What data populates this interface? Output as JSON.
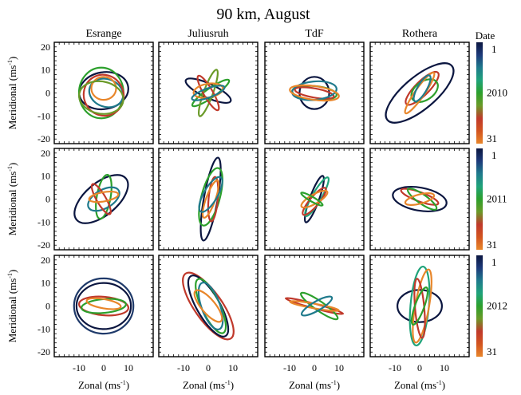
{
  "chart_data": {
    "type": "line",
    "title": "90 km, August",
    "xlabel": "Zonal (ms",
    "ylabel": "Meridional (ms",
    "unit_superscript": "-1",
    "columns": [
      "Esrange",
      "Juliusruh",
      "TdF",
      "Rothera"
    ],
    "years": [
      "2010",
      "2011",
      "2012"
    ],
    "xlim": [
      -20,
      20
    ],
    "ylim": [
      -22,
      22
    ],
    "xticks": [
      -10,
      0,
      10
    ],
    "yticks": [
      -20,
      -10,
      0,
      10,
      20
    ],
    "grid": false,
    "colorbar": {
      "title": "Date",
      "top_label": "1",
      "bottom_label": "31",
      "colors": [
        "#0b1640",
        "#1d3a7a",
        "#1f7a8c",
        "#1fa37a",
        "#2ca02c",
        "#6a9a28",
        "#c0392b",
        "#d2541f",
        "#e8862a"
      ]
    },
    "series_description": "Each panel shows hodograph ellipses (meridional vs zonal wind) for days 1-31 of August colored by date",
    "panels": [
      [
        {
          "ellipses": [
            {
              "cx": 0,
              "cy": 1,
              "a": 10,
              "b": 8,
              "angle": 10,
              "color": "#0b1640"
            },
            {
              "cx": -1,
              "cy": 0,
              "a": 9,
              "b": 11,
              "angle": 0,
              "color": "#2ca02c"
            },
            {
              "cx": 1,
              "cy": 0,
              "a": 7,
              "b": 6,
              "angle": -20,
              "color": "#1f7a8c"
            },
            {
              "cx": 0,
              "cy": -1,
              "a": 8,
              "b": 9,
              "angle": 30,
              "color": "#c0392b"
            },
            {
              "cx": 0,
              "cy": 2,
              "a": 5,
              "b": 5,
              "angle": 0,
              "color": "#e8862a"
            },
            {
              "cx": -1,
              "cy": -2,
              "a": 9,
              "b": 7,
              "angle": -10,
              "color": "#6a9a28"
            }
          ]
        },
        {
          "ellipses": [
            {
              "cx": 0,
              "cy": 1,
              "a": 10,
              "b": 3,
              "angle": -25,
              "color": "#0b1640"
            },
            {
              "cx": 1,
              "cy": 0,
              "a": 9,
              "b": 2,
              "angle": 35,
              "color": "#2ca02c"
            },
            {
              "cx": 0,
              "cy": 0,
              "a": 10,
              "b": 2,
              "angle": 70,
              "color": "#6a9a28"
            },
            {
              "cx": 0,
              "cy": 0,
              "a": 8,
              "b": 2,
              "angle": -60,
              "color": "#c0392b"
            },
            {
              "cx": 0,
              "cy": 1,
              "a": 6,
              "b": 3,
              "angle": 10,
              "color": "#e8862a"
            },
            {
              "cx": 0,
              "cy": 0,
              "a": 7,
              "b": 2,
              "angle": 20,
              "color": "#1f7a8c"
            }
          ]
        },
        {
          "ellipses": [
            {
              "cx": 0,
              "cy": 0,
              "a": 6,
              "b": 7,
              "angle": 0,
              "color": "#0b1640"
            },
            {
              "cx": 0,
              "cy": 0,
              "a": 9,
              "b": 3,
              "angle": -5,
              "color": "#2ca02c"
            },
            {
              "cx": 0,
              "cy": 0,
              "a": 8,
              "b": 2,
              "angle": -10,
              "color": "#c0392b"
            },
            {
              "cx": 0,
              "cy": 1,
              "a": 9,
              "b": 4,
              "angle": 5,
              "color": "#1f7a8c"
            },
            {
              "cx": 0,
              "cy": 0,
              "a": 10,
              "b": 3,
              "angle": -8,
              "color": "#e8862a"
            }
          ]
        },
        {
          "ellipses": [
            {
              "cx": 0,
              "cy": 0,
              "a": 17,
              "b": 7,
              "angle": 40,
              "color": "#0b1640"
            },
            {
              "cx": 1,
              "cy": 2,
              "a": 9,
              "b": 3,
              "angle": 45,
              "color": "#c0392b"
            },
            {
              "cx": 2,
              "cy": 1,
              "a": 6,
              "b": 4,
              "angle": 35,
              "color": "#2ca02c"
            },
            {
              "cx": 0,
              "cy": 0,
              "a": 10,
              "b": 2,
              "angle": 55,
              "color": "#e8862a"
            },
            {
              "cx": 1,
              "cy": 2,
              "a": 6,
              "b": 2,
              "angle": 60,
              "color": "#1f7a8c"
            }
          ]
        }
      ],
      [
        {
          "ellipses": [
            {
              "cx": -1,
              "cy": 0,
              "a": 13,
              "b": 7,
              "angle": 40,
              "color": "#0b1640"
            },
            {
              "cx": 0,
              "cy": 1,
              "a": 9,
              "b": 3,
              "angle": 80,
              "color": "#2ca02c"
            },
            {
              "cx": 0,
              "cy": 0,
              "a": 7,
              "b": 4,
              "angle": 30,
              "color": "#1f7a8c"
            },
            {
              "cx": -1,
              "cy": 0,
              "a": 7,
              "b": 2,
              "angle": -60,
              "color": "#c0392b"
            },
            {
              "cx": 0,
              "cy": 1,
              "a": 6,
              "b": 2,
              "angle": 10,
              "color": "#e8862a"
            }
          ]
        },
        {
          "ellipses": [
            {
              "cx": 1,
              "cy": 0,
              "a": 17,
              "b": 3,
              "angle": 80,
              "color": "#0b1640"
            },
            {
              "cx": 1,
              "cy": 1,
              "a": 12,
              "b": 4,
              "angle": 75,
              "color": "#2ca02c"
            },
            {
              "cx": 2,
              "cy": 0,
              "a": 9,
              "b": 2,
              "angle": 85,
              "color": "#c0392b"
            },
            {
              "cx": 1,
              "cy": 0,
              "a": 8,
              "b": 2,
              "angle": 70,
              "color": "#e8862a"
            },
            {
              "cx": 1,
              "cy": 2,
              "a": 8,
              "b": 3,
              "angle": 60,
              "color": "#1f7a8c"
            }
          ]
        },
        {
          "ellipses": [
            {
              "cx": 0,
              "cy": 0,
              "a": 10,
              "b": 2,
              "angle": 70,
              "color": "#0b1640"
            },
            {
              "cx": 1,
              "cy": 1,
              "a": 9,
              "b": 2,
              "angle": 60,
              "color": "#1fa37a"
            },
            {
              "cx": 0,
              "cy": -1,
              "a": 7,
              "b": 2,
              "angle": 50,
              "color": "#c0392b"
            },
            {
              "cx": 0,
              "cy": 0,
              "a": 6,
              "b": 2,
              "angle": 30,
              "color": "#e8862a"
            },
            {
              "cx": -1,
              "cy": 0,
              "a": 5,
              "b": 1,
              "angle": -30,
              "color": "#2ca02c"
            }
          ]
        },
        {
          "ellipses": [
            {
              "cx": 0,
              "cy": 0,
              "a": 11,
              "b": 5,
              "angle": -10,
              "color": "#0b1640"
            },
            {
              "cx": 0,
              "cy": 1,
              "a": 8,
              "b": 2,
              "angle": -20,
              "color": "#c0392b"
            },
            {
              "cx": 1,
              "cy": 0,
              "a": 7,
              "b": 2,
              "angle": -35,
              "color": "#2ca02c"
            },
            {
              "cx": 0,
              "cy": 0,
              "a": 6,
              "b": 2,
              "angle": 15,
              "color": "#e8862a"
            }
          ]
        }
      ],
      [
        {
          "ellipses": [
            {
              "cx": 0,
              "cy": 0,
              "a": 12,
              "b": 12,
              "angle": 0,
              "color": "#1f3a6a"
            },
            {
              "cx": 0,
              "cy": 0,
              "a": 11,
              "b": 10,
              "angle": 0,
              "color": "#0b1640"
            },
            {
              "cx": 0,
              "cy": 0,
              "a": 10,
              "b": 4,
              "angle": -5,
              "color": "#c0392b"
            },
            {
              "cx": 0,
              "cy": 0,
              "a": 9,
              "b": 3,
              "angle": 5,
              "color": "#2ca02c"
            },
            {
              "cx": 0,
              "cy": 1,
              "a": 7,
              "b": 2,
              "angle": -10,
              "color": "#e8862a"
            }
          ]
        },
        {
          "ellipses": [
            {
              "cx": 0,
              "cy": 0,
              "a": 16,
              "b": 6,
              "angle": -55,
              "color": "#c0392b"
            },
            {
              "cx": 0,
              "cy": 0,
              "a": 14,
              "b": 5,
              "angle": -60,
              "color": "#0b1640"
            },
            {
              "cx": 1,
              "cy": 0,
              "a": 12,
              "b": 4,
              "angle": -65,
              "color": "#2ca02c"
            },
            {
              "cx": 1,
              "cy": 0,
              "a": 10,
              "b": 4,
              "angle": -70,
              "color": "#1f7a8c"
            },
            {
              "cx": 0,
              "cy": 0,
              "a": 8,
              "b": 3,
              "angle": -50,
              "color": "#e8862a"
            }
          ]
        },
        {
          "ellipses": [
            {
              "cx": 0,
              "cy": 0,
              "a": 12,
              "b": 1,
              "angle": -15,
              "color": "#c0392b"
            },
            {
              "cx": 2,
              "cy": 0,
              "a": 9,
              "b": 2,
              "angle": -35,
              "color": "#2ca02c"
            },
            {
              "cx": 0,
              "cy": 0,
              "a": 10,
              "b": 1,
              "angle": -10,
              "color": "#e8862a"
            },
            {
              "cx": 1,
              "cy": 0,
              "a": 7,
              "b": 2,
              "angle": 30,
              "color": "#1f7a8c"
            }
          ]
        },
        {
          "ellipses": [
            {
              "cx": 0,
              "cy": 0,
              "a": 9,
              "b": 7,
              "angle": 0,
              "color": "#0b1640"
            },
            {
              "cx": 0,
              "cy": 0,
              "a": 16,
              "b": 4,
              "angle": 85,
              "color": "#1fa37a"
            },
            {
              "cx": 1,
              "cy": 0,
              "a": 15,
              "b": 3,
              "angle": 80,
              "color": "#e8862a"
            },
            {
              "cx": 0,
              "cy": -1,
              "a": 12,
              "b": 2,
              "angle": 95,
              "color": "#c0392b"
            },
            {
              "cx": 0,
              "cy": 0,
              "a": 8,
              "b": 2,
              "angle": 70,
              "color": "#2ca02c"
            }
          ]
        }
      ]
    ]
  }
}
